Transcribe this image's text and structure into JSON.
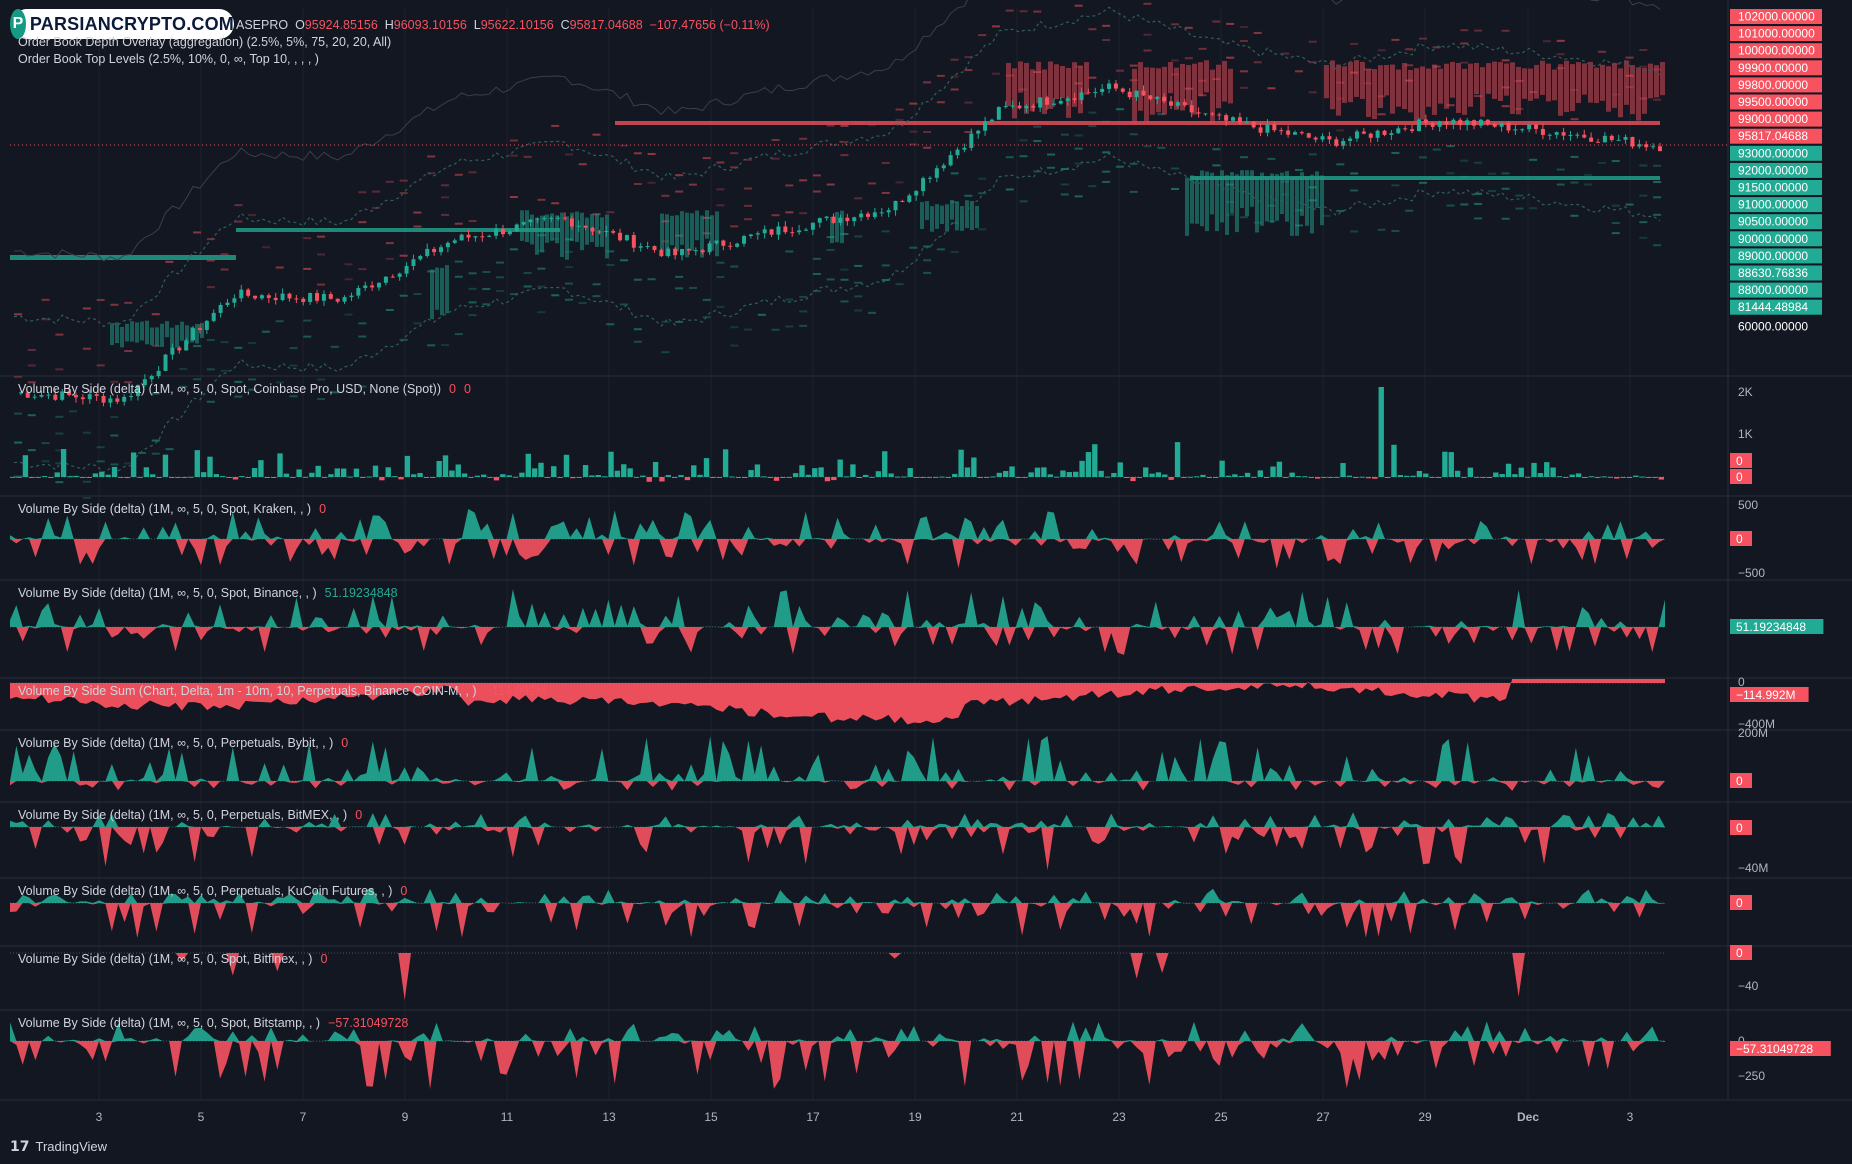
{
  "brand": {
    "logo_text": "PARSIANCRYPTO.COM",
    "logo_mark": "P"
  },
  "main_pane": {
    "symbol_suffix": "ASEPRO",
    "ohlc": {
      "o_label": "O",
      "o": "95924.85156",
      "h_label": "H",
      "h": "96093.10156",
      "l_label": "L",
      "l": "95622.10156",
      "c_label": "C",
      "c": "95817.04688",
      "change": "−107.47656 (−0.11%)"
    },
    "indicator_1": "Order Book Depth Overlay (aggregation) (2.5%, 5%, 75, 20, 20, All)",
    "indicator_2": "Order Book Top Levels (2.5%, 10%, 0, ∞, Top 10, , , , )"
  },
  "price_axis": {
    "labels": [
      {
        "text": "102000.00000",
        "kind": "red"
      },
      {
        "text": "101000.00000",
        "kind": "red"
      },
      {
        "text": "100000.00000",
        "kind": "red"
      },
      {
        "text": "99900.00000",
        "kind": "red"
      },
      {
        "text": "99800.00000",
        "kind": "red"
      },
      {
        "text": "99500.00000",
        "kind": "red"
      },
      {
        "text": "99000.00000",
        "kind": "red"
      },
      {
        "text": "95817.04688",
        "kind": "red"
      },
      {
        "text": "93000.00000",
        "kind": "green"
      },
      {
        "text": "92000.00000",
        "kind": "green"
      },
      {
        "text": "91500.00000",
        "kind": "green"
      },
      {
        "text": "91000.00000",
        "kind": "green"
      },
      {
        "text": "90500.00000",
        "kind": "green"
      },
      {
        "text": "90000.00000",
        "kind": "green"
      },
      {
        "text": "89000.00000",
        "kind": "green"
      },
      {
        "text": "88630.76836",
        "kind": "green"
      },
      {
        "text": "88000.00000",
        "kind": "green"
      },
      {
        "text": "81444.48984",
        "kind": "green"
      },
      {
        "text": "60000.00000",
        "kind": "plain"
      }
    ]
  },
  "panes": [
    {
      "id": "coinbase",
      "title": "Volume By Side (delta) (1M, ∞, 5, 0, Spot, Coinbase Pro, USD, None (Spot))",
      "values": [
        "0",
        "0"
      ],
      "value_kind": "neg",
      "axis": [
        "2K",
        "1K"
      ],
      "badges": [
        {
          "text": "0",
          "kind": "red"
        },
        {
          "text": "0",
          "kind": "red"
        }
      ]
    },
    {
      "id": "kraken",
      "title": "Volume By Side (delta) (1M, ∞, 5, 0, Spot, Kraken, , )",
      "values": [
        "0"
      ],
      "value_kind": "neg",
      "axis": [
        "500",
        "−500"
      ],
      "badges": [
        {
          "text": "0",
          "kind": "red"
        }
      ]
    },
    {
      "id": "binance",
      "title": "Volume By Side (delta) (1M, ∞, 5, 0, Spot, Binance, , )",
      "values": [
        "51.19234848"
      ],
      "value_kind": "pos",
      "axis": [],
      "badges": [
        {
          "text": "51.19234848",
          "kind": "green"
        }
      ]
    },
    {
      "id": "sum",
      "title": "Volume By Side Sum (Chart, Delta, 1m - 10m, 10, Perpetuals, Binance COIN-M, , )",
      "values": [
        "−114.992M"
      ],
      "value_kind": "neg",
      "axis": [
        "0",
        "−400M"
      ],
      "badges": [
        {
          "text": "−114.992M",
          "kind": "red"
        }
      ]
    },
    {
      "id": "bybit",
      "title": "Volume By Side (delta) (1M, ∞, 5, 0, Perpetuals, Bybit, , )",
      "values": [
        "0"
      ],
      "value_kind": "neg",
      "axis": [
        "200M"
      ],
      "badges": [
        {
          "text": "0",
          "kind": "red"
        }
      ]
    },
    {
      "id": "bitmex",
      "title": "Volume By Side (delta) (1M, ∞, 5, 0, Perpetuals, BitMEX, , )",
      "values": [
        "0"
      ],
      "value_kind": "neg",
      "axis": [
        "−40M"
      ],
      "badges": [
        {
          "text": "0",
          "kind": "red"
        }
      ]
    },
    {
      "id": "kucoin",
      "title": "Volume By Side (delta) (1M, ∞, 5, 0, Perpetuals, KuCoin Futures, , )",
      "values": [
        "0"
      ],
      "value_kind": "neg",
      "axis": [],
      "badges": [
        {
          "text": "0",
          "kind": "red"
        }
      ]
    },
    {
      "id": "bitfinex",
      "title": "Volume By Side (delta) (1M, ∞, 5, 0, Spot, Bitfinex, , )",
      "values": [
        "0"
      ],
      "value_kind": "neg",
      "axis": [
        "−40"
      ],
      "badges": [
        {
          "text": "0",
          "kind": "red"
        }
      ]
    },
    {
      "id": "bitstamp",
      "title": "Volume By Side (delta) (1M, ∞, 5, 0, Spot, Bitstamp, , )",
      "values": [
        "−57.31049728"
      ],
      "value_kind": "neg",
      "axis": [
        "0",
        "−250"
      ],
      "badges": [
        {
          "text": "−57.31049728",
          "kind": "red"
        }
      ]
    }
  ],
  "time_axis": [
    "3",
    "5",
    "7",
    "9",
    "11",
    "13",
    "15",
    "17",
    "19",
    "21",
    "23",
    "25",
    "27",
    "29",
    "Dec",
    "3"
  ],
  "footer": {
    "brand": "TradingView",
    "icon": "tradingview-logo-icon"
  },
  "colors": {
    "bg": "#131722",
    "up": "#22ab94",
    "down": "#f7525f",
    "grid": "#1e222d",
    "text": "#d1d4dc"
  },
  "chart_data": {
    "type": "candlestick",
    "title": "",
    "x_ticks": [
      "3",
      "5",
      "7",
      "9",
      "11",
      "13",
      "15",
      "17",
      "19",
      "21",
      "23",
      "25",
      "27",
      "29",
      "Dec",
      "3"
    ],
    "last_price": 95817.04688,
    "price_path_approx": [
      {
        "x": "3",
        "close": 84500
      },
      {
        "x": "5",
        "close": 84200
      },
      {
        "x": "7",
        "close": 89000
      },
      {
        "x": "9",
        "close": 88800
      },
      {
        "x": "11",
        "close": 91500
      },
      {
        "x": "13",
        "close": 92500
      },
      {
        "x": "15",
        "close": 90800
      },
      {
        "x": "17",
        "close": 92000
      },
      {
        "x": "19",
        "close": 93000
      },
      {
        "x": "21",
        "close": 97500
      },
      {
        "x": "23",
        "close": 98500
      },
      {
        "x": "25",
        "close": 97000
      },
      {
        "x": "27",
        "close": 96000
      },
      {
        "x": "29",
        "close": 97000
      },
      {
        "x": "Dec",
        "close": 96500
      },
      {
        "x": "3",
        "close": 95817
      }
    ]
  }
}
